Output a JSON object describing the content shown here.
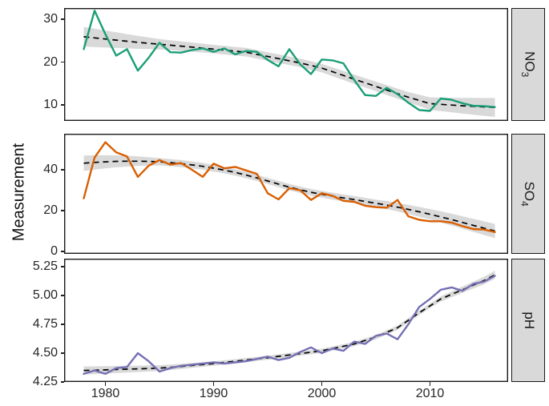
{
  "chart_data": {
    "type": "line",
    "title": "",
    "xlabel": "",
    "ylabel": "Measurement",
    "legend": "none",
    "grid": "off",
    "layout_note": "three vertically stacked facets sharing x axis, facet strips on right, dashed loess trend with grey confidence ribbon in each panel",
    "x_ticks": [
      {
        "label": "1980",
        "value": 1980
      },
      {
        "label": "1990",
        "value": 1990
      },
      {
        "label": "2000",
        "value": 2000
      },
      {
        "label": "2010",
        "value": 2010
      }
    ],
    "years": [
      1978,
      1979,
      1980,
      1981,
      1982,
      1983,
      1984,
      1985,
      1986,
      1987,
      1988,
      1989,
      1990,
      1991,
      1992,
      1993,
      1994,
      1995,
      1996,
      1997,
      1998,
      1999,
      2000,
      2001,
      2002,
      2003,
      2004,
      2005,
      2006,
      2007,
      2008,
      2009,
      2010,
      2011,
      2012,
      2013,
      2014,
      2015,
      2016
    ],
    "facets": [
      {
        "name": "NO3",
        "strip_main": "NO",
        "strip_sub": "3",
        "line_color": "#1b9e77",
        "ylim": [
          6.3,
          32.6
        ],
        "y_ticks": [
          {
            "label": "30",
            "value": 30
          },
          {
            "label": "20",
            "value": 20
          },
          {
            "label": "10",
            "value": 10
          }
        ],
        "values": [
          23,
          32,
          26.5,
          21.5,
          23,
          18,
          21,
          24.5,
          22.3,
          22.2,
          22.8,
          23.2,
          22.4,
          23.2,
          21.8,
          22.6,
          22.4,
          20.5,
          19,
          23,
          19.5,
          17.2,
          20.6,
          20.4,
          19.7,
          15.8,
          12.3,
          12.1,
          14,
          12.5,
          10.5,
          8.8,
          8.6,
          11.5,
          11.2,
          10.4,
          9.8,
          9.7,
          9.5
        ],
        "trend_smooth": [
          25.9,
          25.64,
          25.38,
          25.12,
          24.86,
          24.6,
          24.38,
          24.16,
          23.94,
          23.72,
          23.5,
          23.26,
          23.02,
          22.78,
          22.54,
          22.3,
          21.8,
          21.3,
          20.8,
          20.3,
          19.8,
          19.2,
          18.6,
          17.73,
          16.87,
          16,
          15.15,
          14.3,
          13.47,
          12.63,
          11.8,
          11.05,
          10.3,
          10.13,
          9.97,
          9.8,
          9.67,
          9.53,
          9.4
        ],
        "ci_halfwidth": [
          2.3,
          2.14,
          1.99,
          1.83,
          1.67,
          1.51,
          1.36,
          1.2,
          1.16,
          1.12,
          1.08,
          1.04,
          1,
          1,
          1,
          1,
          1,
          1,
          1,
          1,
          1,
          1,
          1,
          1.03,
          1.05,
          1.08,
          1.1,
          1.13,
          1.15,
          1.18,
          1.2,
          1.33,
          1.45,
          1.58,
          1.7,
          1.83,
          1.95,
          2.08,
          2.2
        ]
      },
      {
        "name": "SO4",
        "strip_main": "SO",
        "strip_sub": "4",
        "line_color": "#d95f02",
        "ylim": [
          -1.2,
          57.6
        ],
        "y_ticks": [
          {
            "label": "40",
            "value": 40
          },
          {
            "label": "20",
            "value": 20
          },
          {
            "label": "0",
            "value": 0
          }
        ],
        "values": [
          26,
          46,
          53.5,
          48.5,
          46.5,
          36.5,
          42,
          44.8,
          42.5,
          43.3,
          40,
          36.5,
          43,
          40.7,
          41.4,
          39.7,
          38,
          28.5,
          25.5,
          31,
          30,
          25.2,
          28.5,
          27.2,
          24.8,
          24.3,
          22.4,
          21.7,
          21.4,
          25.2,
          17.2,
          15.5,
          14.8,
          14.8,
          14.1,
          12.4,
          11,
          10.7,
          9.5
        ],
        "trend_smooth": [
          43.2,
          43.6,
          43.9,
          44.1,
          44.2,
          44.2,
          44.1,
          43.9,
          43.5,
          43,
          42.4,
          41.7,
          40.8,
          39.8,
          38.7,
          37.4,
          36,
          34.5,
          33,
          31.5,
          30.2,
          29,
          28,
          27.1,
          26.2,
          25.4,
          24.5,
          23.6,
          22.7,
          21.7,
          20.6,
          19.4,
          18.2,
          16.9,
          15.6,
          14.2,
          12.8,
          11.4,
          10
        ],
        "ci_halfwidth": [
          3.8,
          3.51,
          3.23,
          2.94,
          2.66,
          2.37,
          2.09,
          1.8,
          1.77,
          1.74,
          1.71,
          1.68,
          1.65,
          1.62,
          1.59,
          1.56,
          1.53,
          1.5,
          1.53,
          1.56,
          1.59,
          1.62,
          1.65,
          1.68,
          1.71,
          1.74,
          1.77,
          1.8,
          1.95,
          2.11,
          2.26,
          2.42,
          2.57,
          2.73,
          2.88,
          3.04,
          3.19,
          3.35,
          3.5
        ]
      },
      {
        "name": "pH",
        "strip_main": "pH",
        "strip_sub": "",
        "line_color": "#7570b3",
        "ylim": [
          4.25,
          5.32
        ],
        "y_ticks": [
          {
            "label": "5.25",
            "value": 5.25
          },
          {
            "label": "5.00",
            "value": 5.0
          },
          {
            "label": "4.75",
            "value": 4.75
          },
          {
            "label": "4.50",
            "value": 4.5
          },
          {
            "label": "4.25",
            "value": 4.25
          }
        ],
        "values": [
          4.32,
          4.35,
          4.32,
          4.37,
          4.38,
          4.5,
          4.43,
          4.34,
          4.37,
          4.39,
          4.4,
          4.41,
          4.42,
          4.41,
          4.42,
          4.43,
          4.45,
          4.47,
          4.44,
          4.46,
          4.51,
          4.55,
          4.5,
          4.54,
          4.52,
          4.6,
          4.58,
          4.65,
          4.67,
          4.62,
          4.75,
          4.9,
          4.97,
          5.05,
          5.07,
          5.04,
          5.1,
          5.12,
          5.17
        ],
        "trend_smooth": [
          4.35,
          4.352,
          4.355,
          4.358,
          4.361,
          4.364,
          4.367,
          4.37,
          4.377,
          4.385,
          4.393,
          4.401,
          4.41,
          4.42,
          4.43,
          4.44,
          4.45,
          4.46,
          4.472,
          4.484,
          4.496,
          4.508,
          4.52,
          4.54,
          4.56,
          4.58,
          4.61,
          4.64,
          4.68,
          4.72,
          4.785,
          4.85,
          4.91,
          4.97,
          5.01,
          5.05,
          5.09,
          5.13,
          5.18
        ],
        "ci_halfwidth": [
          0.035,
          0.0336,
          0.0322,
          0.0307,
          0.0293,
          0.0279,
          0.0265,
          0.0251,
          0.0236,
          0.0222,
          0.0208,
          0.0194,
          0.018,
          0.018,
          0.018,
          0.018,
          0.018,
          0.018,
          0.018,
          0.018,
          0.018,
          0.018,
          0.018,
          0.0182,
          0.0184,
          0.0186,
          0.0188,
          0.019,
          0.0192,
          0.0194,
          0.0196,
          0.0198,
          0.02,
          0.0225,
          0.025,
          0.0275,
          0.03,
          0.0325,
          0.035
        ]
      }
    ],
    "colors": {
      "trend_line": "#000000",
      "ci_ribbon": "rgba(0,0,0,0.15)",
      "panel_border": "#1a1a1a",
      "strip_background": "#d9d9d9",
      "tick_text": "#262626"
    }
  }
}
